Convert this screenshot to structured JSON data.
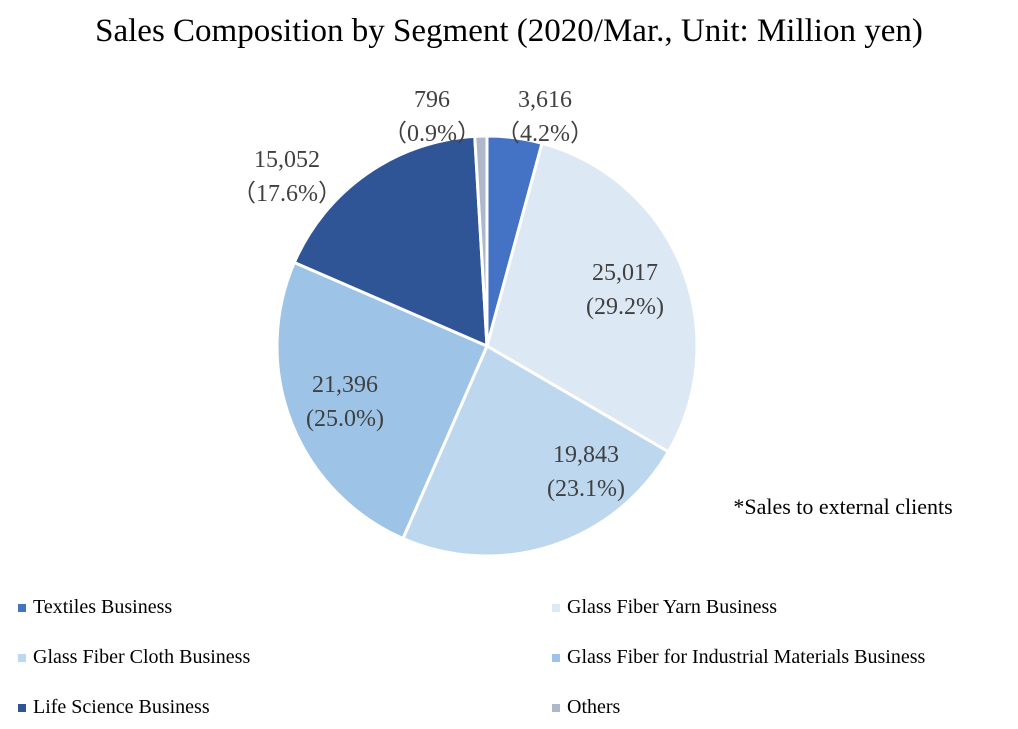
{
  "chart_data": {
    "type": "pie",
    "title": "Sales Composition by Segment (2020/Mar., Unit: Million yen)",
    "note": "*Sales to external clients",
    "slices": [
      {
        "name": "Textiles Business",
        "value": 3616,
        "value_label": "3,616",
        "pct_label": "（4.2%）",
        "color": "#4472c4"
      },
      {
        "name": "Glass Fiber Yarn Business",
        "value": 25017,
        "value_label": "25,017",
        "pct_label": "(29.2%)",
        "color": "#dde8f5"
      },
      {
        "name": "Glass Fiber Cloth Business",
        "value": 19843,
        "value_label": "19,843",
        "pct_label": "(23.1%)",
        "color": "#bdd7ee"
      },
      {
        "name": "Glass Fiber for Industrial Materials Business",
        "value": 21396,
        "value_label": "21,396",
        "pct_label": "(25.0%)",
        "color": "#9dc3e6"
      },
      {
        "name": "Life Science Business",
        "value": 15052,
        "value_label": "15,052",
        "pct_label": "（17.6%）",
        "color": "#2f5597"
      },
      {
        "name": "Others",
        "value": 796,
        "value_label": "796",
        "pct_label": "（0.9%）",
        "color": "#adb9ca"
      }
    ],
    "legend_position": "bottom"
  }
}
